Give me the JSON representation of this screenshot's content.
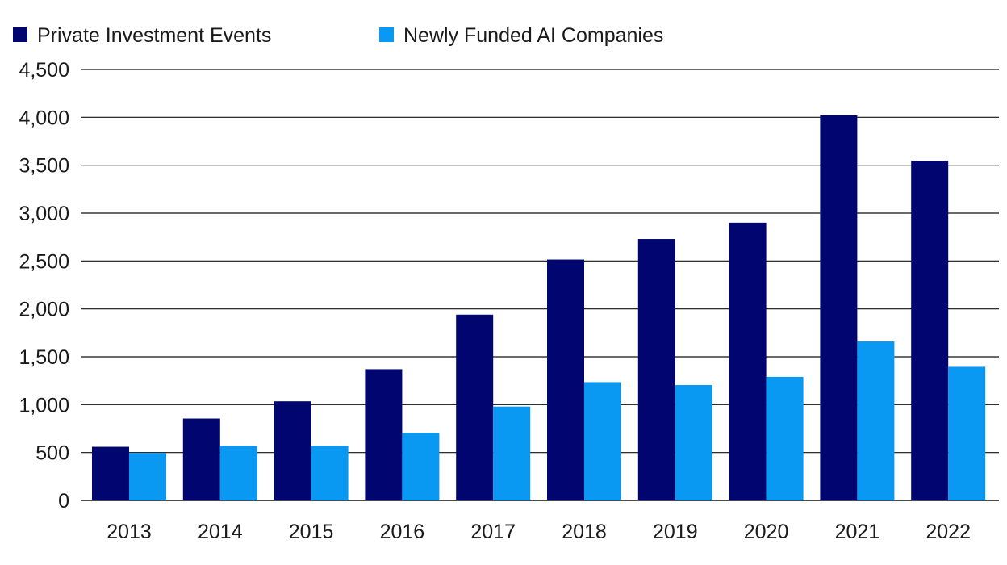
{
  "chart_data": {
    "type": "bar",
    "title": "",
    "xlabel": "",
    "ylabel": "",
    "categories": [
      "2013",
      "2014",
      "2015",
      "2016",
      "2017",
      "2018",
      "2019",
      "2020",
      "2021",
      "2022"
    ],
    "series": [
      {
        "name": "Private Investment Events",
        "color": "#000570",
        "values": [
          560,
          855,
          1035,
          1370,
          1940,
          2515,
          2730,
          2900,
          4020,
          3545
        ]
      },
      {
        "name": "Newly Funded AI Companies",
        "color": "#0a99f2",
        "values": [
          495,
          570,
          570,
          705,
          980,
          1235,
          1205,
          1290,
          1660,
          1395
        ]
      }
    ],
    "ylim": [
      0,
      4500
    ],
    "yticks": [
      0,
      500,
      1000,
      1500,
      2000,
      2500,
      3000,
      3500,
      4000,
      4500
    ],
    "ytick_labels": [
      "0",
      "500",
      "1,000",
      "1,500",
      "2,000",
      "2,500",
      "3,000",
      "3,500",
      "4,000",
      "4,500"
    ],
    "grid": true,
    "legend_position": "top-left"
  }
}
